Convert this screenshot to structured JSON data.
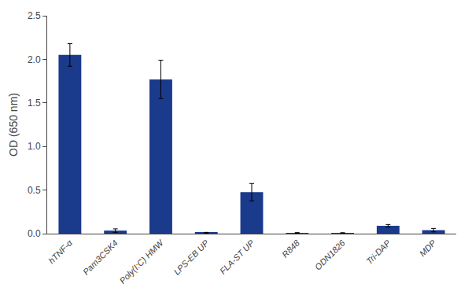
{
  "chart_data": {
    "type": "bar",
    "ylabel": "OD (650 nm)",
    "categories": [
      "hTNF-α",
      "Pam3CSK4",
      "Poly(I:C) HMW",
      "LPS-EB UP",
      "FLA-ST UP",
      "R848",
      "ODN1826",
      "Tri-DAP",
      "MDP"
    ],
    "values": [
      2.05,
      0.035,
      1.77,
      0.01,
      0.475,
      0.008,
      0.007,
      0.09,
      0.04
    ],
    "errors": [
      0.13,
      0.02,
      0.22,
      0.005,
      0.1,
      0.004,
      0.004,
      0.015,
      0.02
    ],
    "color": "#1a3a8c",
    "ylim": [
      0,
      2.5
    ],
    "yticks": [
      {
        "value": 0,
        "label": "0.0"
      },
      0.5,
      {
        "value": 1,
        "label": "1.0"
      },
      1.5,
      {
        "value": 2,
        "label": "2.0"
      },
      2.5
    ],
    "grid": false
  }
}
